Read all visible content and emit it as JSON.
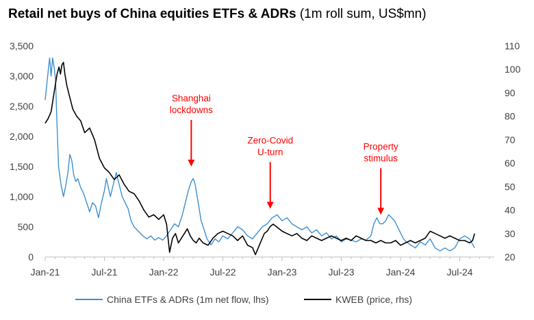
{
  "chart_data": {
    "type": "line",
    "title": "Retail net buys of China equities ETFs & ADRs",
    "title_suffix": "(1m roll sum, US$mn)",
    "x_tick_labels": [
      "Jan-21",
      "Jul-21",
      "Jan-22",
      "Jul-22",
      "Jan-23",
      "Jul-23",
      "Jan-24",
      "Jul-24"
    ],
    "xlim": [
      0,
      45.5
    ],
    "left_axis": {
      "range": [
        0,
        3500
      ],
      "ticks": [
        0,
        500,
        1000,
        1500,
        2000,
        2500,
        3000,
        3500
      ],
      "tick_labels": [
        "0",
        "500",
        "1,000",
        "1,500",
        "2,000",
        "2,500",
        "3,000",
        "3,500"
      ]
    },
    "right_axis": {
      "range": [
        20,
        110
      ],
      "ticks": [
        20,
        30,
        40,
        50,
        60,
        70,
        80,
        90,
        100,
        110
      ],
      "tick_labels": [
        "20",
        "30",
        "40",
        "50",
        "60",
        "70",
        "80",
        "90",
        "100",
        "110"
      ]
    },
    "series": [
      {
        "name": "China ETFs & ADRs (1m net flow, lhs)",
        "axis": "left",
        "color": "#3a8fd0",
        "points": [
          [
            0,
            2600
          ],
          [
            0.25,
            3000
          ],
          [
            0.45,
            3300
          ],
          [
            0.6,
            3000
          ],
          [
            0.75,
            3300
          ],
          [
            0.9,
            3150
          ],
          [
            1.05,
            2950
          ],
          [
            1.2,
            2200
          ],
          [
            1.35,
            1500
          ],
          [
            1.6,
            1200
          ],
          [
            1.85,
            1000
          ],
          [
            2.1,
            1200
          ],
          [
            2.3,
            1400
          ],
          [
            2.5,
            1700
          ],
          [
            2.7,
            1600
          ],
          [
            2.9,
            1350
          ],
          [
            3.1,
            1250
          ],
          [
            3.3,
            1300
          ],
          [
            3.6,
            1150
          ],
          [
            3.9,
            1050
          ],
          [
            4.2,
            900
          ],
          [
            4.5,
            750
          ],
          [
            4.8,
            900
          ],
          [
            5.1,
            850
          ],
          [
            5.4,
            650
          ],
          [
            5.7,
            900
          ],
          [
            6.0,
            1100
          ],
          [
            6.2,
            1300
          ],
          [
            6.4,
            1150
          ],
          [
            6.6,
            1000
          ],
          [
            6.9,
            1200
          ],
          [
            7.2,
            1400
          ],
          [
            7.5,
            1200
          ],
          [
            7.8,
            1000
          ],
          [
            8.1,
            900
          ],
          [
            8.4,
            800
          ],
          [
            8.7,
            600
          ],
          [
            9.0,
            500
          ],
          [
            9.3,
            450
          ],
          [
            9.6,
            400
          ],
          [
            9.9,
            350
          ],
          [
            10.3,
            300
          ],
          [
            10.7,
            350
          ],
          [
            11.1,
            280
          ],
          [
            11.5,
            320
          ],
          [
            11.9,
            280
          ],
          [
            12.3,
            350
          ],
          [
            12.7,
            450
          ],
          [
            13.1,
            550
          ],
          [
            13.5,
            500
          ],
          [
            13.9,
            700
          ],
          [
            14.2,
            900
          ],
          [
            14.5,
            1100
          ],
          [
            14.8,
            1250
          ],
          [
            15.0,
            1300
          ],
          [
            15.2,
            1200
          ],
          [
            15.5,
            900
          ],
          [
            15.8,
            600
          ],
          [
            16.1,
            450
          ],
          [
            16.4,
            300
          ],
          [
            16.8,
            200
          ],
          [
            17.2,
            300
          ],
          [
            17.6,
            250
          ],
          [
            18.0,
            350
          ],
          [
            18.5,
            300
          ],
          [
            19.0,
            400
          ],
          [
            19.5,
            500
          ],
          [
            20.0,
            450
          ],
          [
            20.5,
            350
          ],
          [
            21.0,
            300
          ],
          [
            21.5,
            400
          ],
          [
            22.0,
            500
          ],
          [
            22.5,
            550
          ],
          [
            23.0,
            650
          ],
          [
            23.5,
            700
          ],
          [
            24.0,
            600
          ],
          [
            24.5,
            650
          ],
          [
            25.0,
            550
          ],
          [
            25.5,
            500
          ],
          [
            26.0,
            450
          ],
          [
            26.5,
            500
          ],
          [
            27.0,
            400
          ],
          [
            27.5,
            450
          ],
          [
            28.0,
            350
          ],
          [
            28.5,
            400
          ],
          [
            29.0,
            300
          ],
          [
            29.5,
            350
          ],
          [
            30.0,
            250
          ],
          [
            30.5,
            300
          ],
          [
            31.0,
            280
          ],
          [
            31.5,
            250
          ],
          [
            32.0,
            300
          ],
          [
            32.5,
            280
          ],
          [
            33.0,
            350
          ],
          [
            33.3,
            550
          ],
          [
            33.6,
            650
          ],
          [
            33.9,
            550
          ],
          [
            34.2,
            550
          ],
          [
            34.5,
            600
          ],
          [
            34.8,
            700
          ],
          [
            35.1,
            650
          ],
          [
            35.4,
            600
          ],
          [
            35.7,
            500
          ],
          [
            36.0,
            400
          ],
          [
            36.3,
            300
          ],
          [
            36.6,
            250
          ],
          [
            37.0,
            200
          ],
          [
            37.5,
            150
          ],
          [
            38.0,
            250
          ],
          [
            38.5,
            200
          ],
          [
            39.0,
            300
          ],
          [
            39.5,
            150
          ],
          [
            40.0,
            100
          ],
          [
            40.5,
            150
          ],
          [
            41.0,
            100
          ],
          [
            41.5,
            150
          ],
          [
            42.0,
            300
          ],
          [
            42.5,
            350
          ],
          [
            43.0,
            300
          ],
          [
            43.5,
            150
          ]
        ]
      },
      {
        "name": "KWEB (price, rhs)",
        "axis": "right",
        "color": "#000000",
        "points": [
          [
            0,
            77
          ],
          [
            0.3,
            79
          ],
          [
            0.6,
            82
          ],
          [
            0.9,
            90
          ],
          [
            1.2,
            98
          ],
          [
            1.4,
            101
          ],
          [
            1.55,
            98
          ],
          [
            1.7,
            102
          ],
          [
            1.85,
            103
          ],
          [
            2.0,
            98
          ],
          [
            2.2,
            93
          ],
          [
            2.5,
            88
          ],
          [
            2.8,
            83
          ],
          [
            3.2,
            80
          ],
          [
            3.6,
            78
          ],
          [
            4.0,
            73
          ],
          [
            4.5,
            75
          ],
          [
            5.0,
            70
          ],
          [
            5.5,
            62
          ],
          [
            6.0,
            58
          ],
          [
            6.5,
            56
          ],
          [
            7.0,
            53
          ],
          [
            7.5,
            55
          ],
          [
            8.0,
            51
          ],
          [
            8.5,
            48
          ],
          [
            9.0,
            47
          ],
          [
            9.5,
            44
          ],
          [
            10.0,
            40
          ],
          [
            10.5,
            37
          ],
          [
            11.0,
            38
          ],
          [
            11.5,
            36
          ],
          [
            12.0,
            38
          ],
          [
            12.3,
            34
          ],
          [
            12.6,
            22
          ],
          [
            12.9,
            28
          ],
          [
            13.2,
            30
          ],
          [
            13.5,
            26
          ],
          [
            13.8,
            28
          ],
          [
            14.1,
            30
          ],
          [
            14.4,
            32
          ],
          [
            14.7,
            29
          ],
          [
            15.0,
            27
          ],
          [
            15.3,
            26
          ],
          [
            15.6,
            28
          ],
          [
            16.0,
            26
          ],
          [
            16.5,
            25
          ],
          [
            17.0,
            28
          ],
          [
            17.5,
            30
          ],
          [
            18.0,
            31
          ],
          [
            18.5,
            30
          ],
          [
            19.0,
            29
          ],
          [
            19.5,
            27
          ],
          [
            20.0,
            29
          ],
          [
            20.5,
            25
          ],
          [
            21.0,
            24
          ],
          [
            21.3,
            21
          ],
          [
            21.6,
            24
          ],
          [
            21.9,
            27
          ],
          [
            22.2,
            30
          ],
          [
            22.5,
            31
          ],
          [
            22.8,
            33
          ],
          [
            23.1,
            34
          ],
          [
            23.4,
            33
          ],
          [
            23.7,
            32
          ],
          [
            24.0,
            31
          ],
          [
            24.5,
            30
          ],
          [
            25.0,
            29
          ],
          [
            25.5,
            30
          ],
          [
            26.0,
            28
          ],
          [
            26.5,
            27
          ],
          [
            27.0,
            29
          ],
          [
            27.5,
            28
          ],
          [
            28.0,
            27
          ],
          [
            28.5,
            28
          ],
          [
            29.0,
            29
          ],
          [
            29.5,
            28
          ],
          [
            30.0,
            27
          ],
          [
            30.5,
            28
          ],
          [
            31.0,
            27
          ],
          [
            31.5,
            29
          ],
          [
            32.0,
            28
          ],
          [
            32.5,
            27
          ],
          [
            33.0,
            27
          ],
          [
            33.5,
            26
          ],
          [
            34.0,
            27
          ],
          [
            34.5,
            26
          ],
          [
            35.0,
            26
          ],
          [
            35.5,
            27
          ],
          [
            36.0,
            25
          ],
          [
            36.5,
            26
          ],
          [
            37.0,
            27
          ],
          [
            37.5,
            26
          ],
          [
            38.0,
            27
          ],
          [
            38.5,
            28
          ],
          [
            39.0,
            31
          ],
          [
            39.5,
            30
          ],
          [
            40.0,
            29
          ],
          [
            40.5,
            28
          ],
          [
            41.0,
            29
          ],
          [
            41.5,
            28
          ],
          [
            42.0,
            27
          ],
          [
            42.5,
            27
          ],
          [
            43.0,
            26
          ],
          [
            43.3,
            27
          ],
          [
            43.5,
            30
          ]
        ]
      }
    ],
    "annotations": [
      {
        "lines": [
          "Shanghai",
          "lockdowns"
        ],
        "x": 14.8,
        "arrow_tip_value": 1500
      },
      {
        "lines": [
          "Zero-Covid",
          "U-turn"
        ],
        "x": 22.8,
        "arrow_tip_value": 800
      },
      {
        "lines": [
          "Property",
          "stimulus"
        ],
        "x": 34.0,
        "arrow_tip_value": 700
      }
    ],
    "legend": [
      "China ETFs & ADRs (1m net flow, lhs)",
      "KWEB (price, rhs)"
    ],
    "legend_position": "bottom",
    "grid": false
  }
}
